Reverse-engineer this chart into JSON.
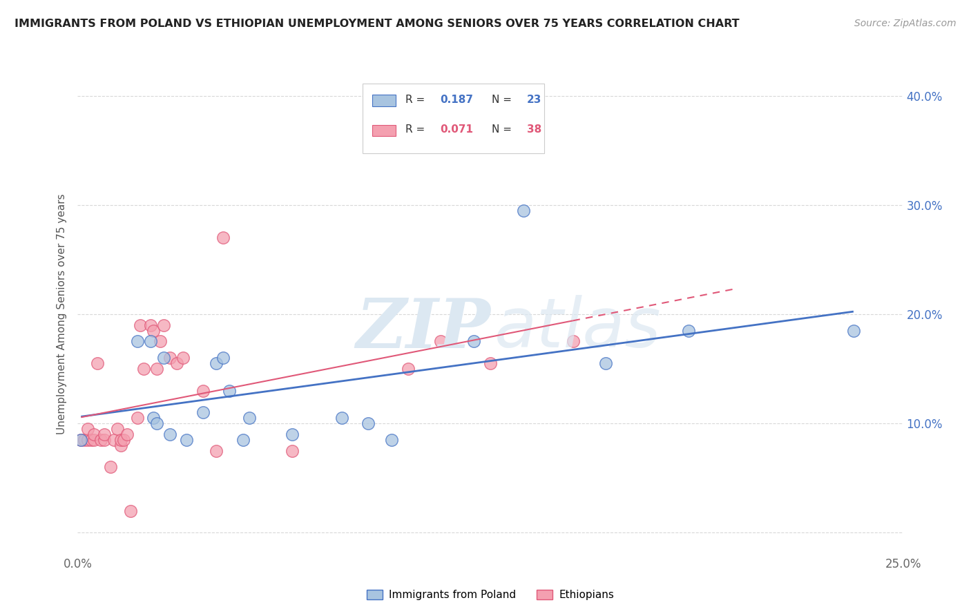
{
  "title": "IMMIGRANTS FROM POLAND VS ETHIOPIAN UNEMPLOYMENT AMONG SENIORS OVER 75 YEARS CORRELATION CHART",
  "source": "Source: ZipAtlas.com",
  "ylabel": "Unemployment Among Seniors over 75 years",
  "xlim": [
    0.0,
    0.25
  ],
  "ylim": [
    -0.02,
    0.42
  ],
  "xticks": [
    0.0,
    0.05,
    0.1,
    0.15,
    0.2,
    0.25
  ],
  "xtick_labels": [
    "0.0%",
    "",
    "",
    "",
    "",
    "25.0%"
  ],
  "yticks": [
    0.0,
    0.1,
    0.2,
    0.3,
    0.4
  ],
  "ytick_labels": [
    "",
    "10.0%",
    "20.0%",
    "30.0%",
    "40.0%"
  ],
  "poland_color": "#a8c4e0",
  "ethiopia_color": "#f4a0b0",
  "poland_line_color": "#4472c4",
  "ethiopia_line_color": "#e05878",
  "poland_x": [
    0.001,
    0.018,
    0.022,
    0.023,
    0.024,
    0.026,
    0.028,
    0.033,
    0.038,
    0.042,
    0.044,
    0.046,
    0.05,
    0.052,
    0.065,
    0.08,
    0.088,
    0.095,
    0.12,
    0.135,
    0.16,
    0.185,
    0.235
  ],
  "poland_y": [
    0.085,
    0.175,
    0.175,
    0.105,
    0.1,
    0.16,
    0.09,
    0.085,
    0.11,
    0.155,
    0.16,
    0.13,
    0.085,
    0.105,
    0.09,
    0.105,
    0.1,
    0.085,
    0.175,
    0.295,
    0.155,
    0.185,
    0.185
  ],
  "ethiopia_x": [
    0.001,
    0.002,
    0.003,
    0.003,
    0.004,
    0.005,
    0.005,
    0.006,
    0.007,
    0.008,
    0.008,
    0.01,
    0.011,
    0.012,
    0.013,
    0.013,
    0.014,
    0.015,
    0.016,
    0.018,
    0.019,
    0.02,
    0.022,
    0.023,
    0.024,
    0.025,
    0.026,
    0.028,
    0.03,
    0.032,
    0.038,
    0.042,
    0.044,
    0.065,
    0.1,
    0.11,
    0.125,
    0.15
  ],
  "ethiopia_y": [
    0.085,
    0.085,
    0.085,
    0.095,
    0.085,
    0.085,
    0.09,
    0.155,
    0.085,
    0.085,
    0.09,
    0.06,
    0.085,
    0.095,
    0.08,
    0.085,
    0.085,
    0.09,
    0.02,
    0.105,
    0.19,
    0.15,
    0.19,
    0.185,
    0.15,
    0.175,
    0.19,
    0.16,
    0.155,
    0.16,
    0.13,
    0.075,
    0.27,
    0.075,
    0.15,
    0.175,
    0.155,
    0.175
  ],
  "background_color": "#ffffff",
  "grid_color": "#d8d8d8"
}
